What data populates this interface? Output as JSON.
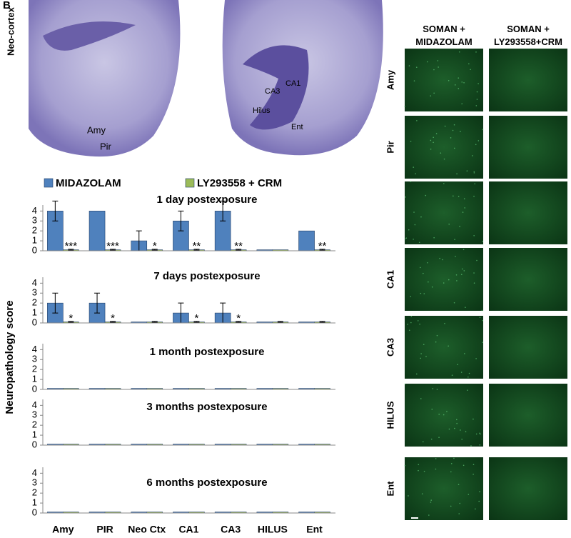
{
  "panel_letter": "B",
  "histology": {
    "left_side_label": "Neo-cortex",
    "left_labels": [
      "Amy",
      "Pir"
    ],
    "right_labels": [
      "CA3",
      "CA1",
      "Hilus",
      "Ent"
    ]
  },
  "fluorescence": {
    "columns": [
      "SOMAN +\nMIDAZOLAM",
      "SOMAN +\nLY293558+CRM"
    ],
    "rows": [
      "Amy",
      "Pir",
      null,
      "CA1",
      "CA3",
      "HILUS",
      "Ent"
    ]
  },
  "chart_data": [
    {
      "type": "bar",
      "title": "1 day postexposure",
      "ylim": [
        0,
        4.6
      ],
      "yticks": [
        0,
        1,
        2,
        3,
        4
      ],
      "series": [
        {
          "name": "MIDAZOLAM",
          "color": "#4f81bd",
          "values": [
            4,
            4,
            1,
            3,
            4,
            0.1,
            2
          ],
          "errors": [
            1,
            0,
            1,
            1,
            1,
            0,
            0
          ]
        },
        {
          "name": "LY293558 + CRM",
          "color": "#9bbb59",
          "values": [
            0.1,
            0.1,
            0.1,
            0.1,
            0.1,
            0.1,
            0.1
          ],
          "errors": [
            0.05,
            0.05,
            0.05,
            0.05,
            0.05,
            0,
            0.05
          ]
        }
      ],
      "annotations": [
        "***",
        "***",
        "*",
        "**",
        "**",
        null,
        "**"
      ]
    },
    {
      "type": "bar",
      "title": "7 days postexposure",
      "ylim": [
        0,
        4.6
      ],
      "yticks": [
        0,
        1,
        2,
        3,
        4
      ],
      "series": [
        {
          "color": "#4f81bd",
          "values": [
            2,
            2,
            0.1,
            1,
            1,
            0.1,
            0.1
          ],
          "errors": [
            1,
            1,
            0,
            1,
            1,
            0,
            0
          ]
        },
        {
          "color": "#9bbb59",
          "values": [
            0.1,
            0.1,
            0.1,
            0.1,
            0.1,
            0.1,
            0.1
          ],
          "errors": [
            0.05,
            0.05,
            0.05,
            0.05,
            0.05,
            0.05,
            0.05
          ]
        }
      ],
      "annotations": [
        "*",
        "*",
        null,
        "*",
        "*",
        null,
        null
      ]
    },
    {
      "type": "bar",
      "title": "1 month postexposure",
      "ylabel": "Neuropathology score",
      "ylim": [
        0,
        4.6
      ],
      "yticks": [
        0,
        1,
        2,
        3,
        4
      ],
      "series": [
        {
          "color": "#4f81bd",
          "values": [
            0.1,
            0.1,
            0.1,
            0.1,
            0.1,
            0.1,
            0.1
          ]
        },
        {
          "color": "#9bbb59",
          "values": [
            0.1,
            0.1,
            0.1,
            0.1,
            0.1,
            0.1,
            0.1
          ]
        }
      ]
    },
    {
      "type": "bar",
      "title": "3 months postexposure",
      "ylim": [
        0,
        4.6
      ],
      "yticks": [
        0,
        1,
        2,
        3,
        4
      ],
      "series": [
        {
          "color": "#4f81bd",
          "values": [
            0.1,
            0.1,
            0.1,
            0.1,
            0.1,
            0.1,
            0.1
          ]
        },
        {
          "color": "#9bbb59",
          "values": [
            0.1,
            0.1,
            0.1,
            0.1,
            0.1,
            0.1,
            0.1
          ]
        }
      ]
    },
    {
      "type": "bar",
      "title": "6 months postexposure",
      "ylim": [
        0,
        4.6
      ],
      "yticks": [
        0,
        1,
        2,
        3,
        4
      ],
      "categories": [
        "Amy",
        "PIR",
        "Neo Ctx",
        "CA1",
        "CA3",
        "HILUS",
        "Ent"
      ],
      "series": [
        {
          "color": "#4f81bd",
          "values": [
            0.1,
            0.1,
            0.1,
            0.1,
            0.1,
            0.1,
            0.1
          ]
        },
        {
          "color": "#9bbb59",
          "values": [
            0.1,
            0.1,
            0.1,
            0.1,
            0.1,
            0.1,
            0.1
          ]
        }
      ]
    }
  ]
}
